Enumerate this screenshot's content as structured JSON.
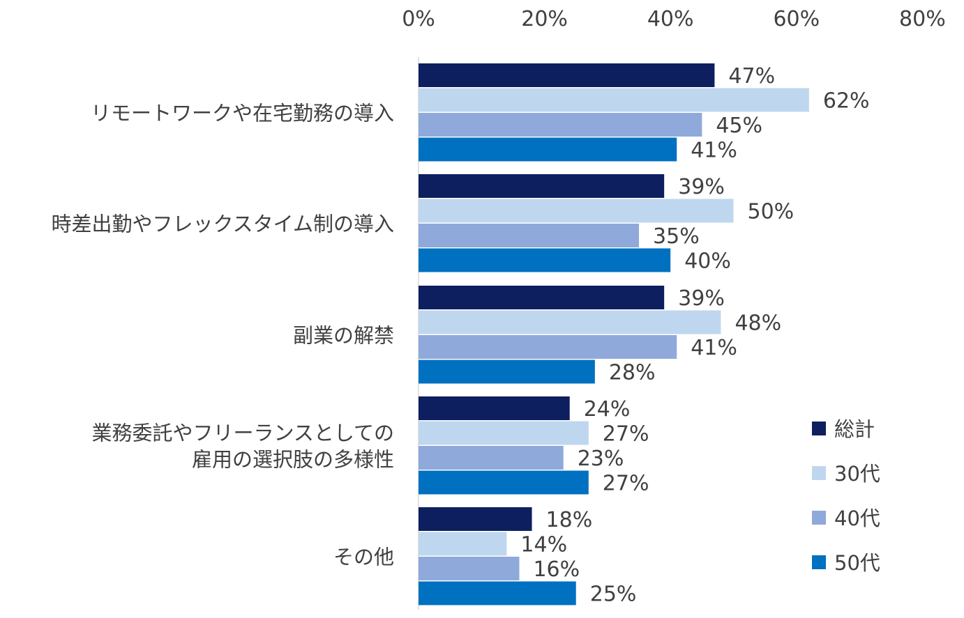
{
  "chart_data": {
    "type": "bar",
    "orientation": "horizontal",
    "title": "",
    "xlabel": "",
    "ylabel": "",
    "xlim": [
      0,
      80
    ],
    "x_ticks": [
      "0%",
      "20%",
      "40%",
      "60%",
      "80%"
    ],
    "x_tick_values": [
      0,
      20,
      40,
      60,
      80
    ],
    "axis_position": "top",
    "grid": false,
    "legend_position": "bottom-right",
    "categories": [
      [
        "リモートワークや在宅勤務の導入"
      ],
      [
        "時差出勤やフレックスタイム制の導入"
      ],
      [
        "副業の解禁"
      ],
      [
        "業務委託やフリーランスとしての",
        "雇用の選択肢の多様性"
      ],
      [
        "その他"
      ]
    ],
    "series": [
      {
        "name": "総計",
        "color": "#0d1f5e",
        "values": [
          47,
          39,
          39,
          24,
          18
        ]
      },
      {
        "name": "30代",
        "color": "#bfd7ee",
        "values": [
          62,
          50,
          48,
          27,
          14
        ]
      },
      {
        "name": "40代",
        "color": "#8fa9da",
        "values": [
          45,
          35,
          41,
          23,
          16
        ]
      },
      {
        "name": "50代",
        "color": "#0070c0",
        "values": [
          41,
          40,
          28,
          27,
          25
        ]
      }
    ],
    "value_suffix": "%"
  }
}
